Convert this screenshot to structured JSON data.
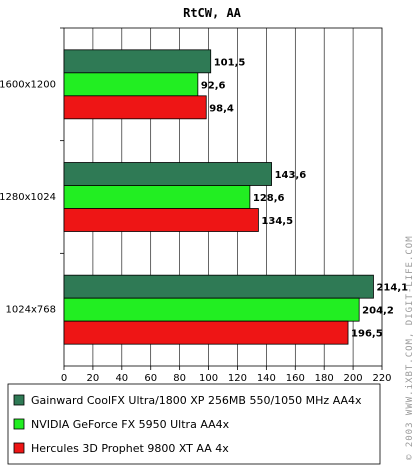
{
  "chart_data": {
    "type": "bar",
    "orientation": "horizontal",
    "title": "RtCW, AA",
    "categories": [
      "1600x1200",
      "1280x1024",
      "1024x768"
    ],
    "series": [
      {
        "name": "Gainward CoolFX Ultra/1800 XP 256MB 550/1050 MHz AA4x",
        "color": "#2f7a55",
        "values": [
          101.5,
          143.6,
          214.1
        ],
        "labels": [
          "101,5",
          "143,6",
          "214,1"
        ]
      },
      {
        "name": "NVIDIA GeForce FX 5950 Ultra AA4x",
        "color": "#22ee22",
        "values": [
          92.6,
          128.6,
          204.2
        ],
        "labels": [
          "92,6",
          "128,6",
          "204,2"
        ]
      },
      {
        "name": "Hercules 3D Prophet 9800 XT AA 4x",
        "color": "#ee1515",
        "values": [
          98.4,
          134.5,
          196.5
        ],
        "labels": [
          "98,4",
          "134,5",
          "196,5"
        ]
      }
    ],
    "xlim": [
      0,
      220
    ],
    "xticks": [
      "0",
      "20",
      "40",
      "60",
      "80",
      "100",
      "120",
      "140",
      "160",
      "180",
      "200",
      "220"
    ],
    "grid": true,
    "legend_position": "bottom"
  },
  "watermark": "© 2003 WWW.iXBT.COM, DIGIT-LIFE.COM"
}
